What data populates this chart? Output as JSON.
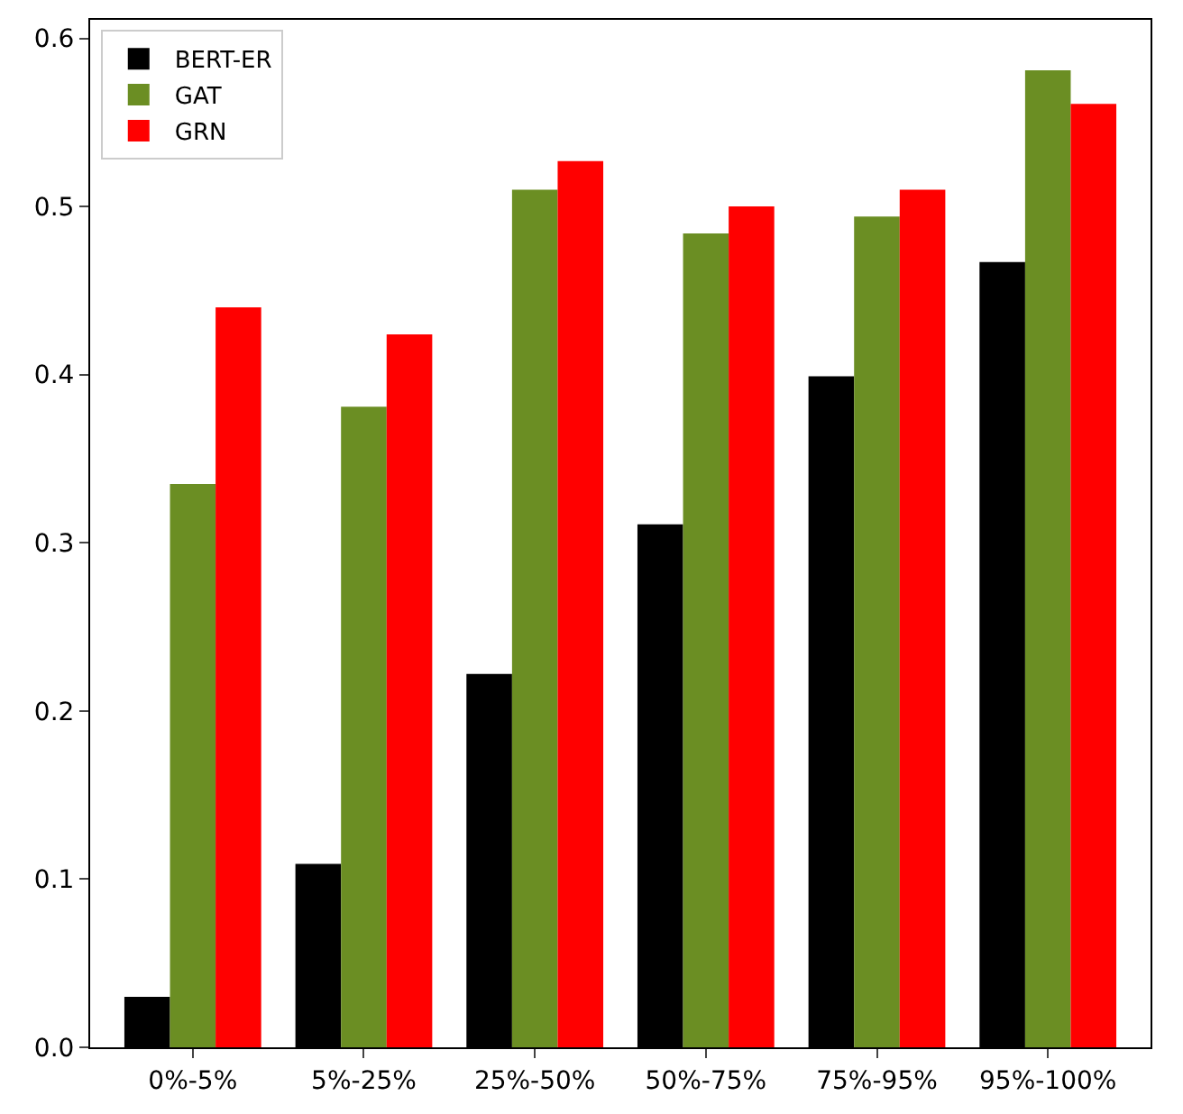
{
  "chart_data": {
    "type": "bar",
    "categories": [
      "0%-5%",
      "5%-25%",
      "25%-50%",
      "50%-75%",
      "75%-95%",
      "95%-100%"
    ],
    "series": [
      {
        "name": "BERT-ER",
        "color": "#000000",
        "values": [
          0.03,
          0.109,
          0.222,
          0.311,
          0.399,
          0.467
        ]
      },
      {
        "name": "GAT",
        "color": "#6b8e23",
        "values": [
          0.335,
          0.381,
          0.51,
          0.484,
          0.494,
          0.581
        ]
      },
      {
        "name": "GRN",
        "color": "#ff0000",
        "values": [
          0.44,
          0.424,
          0.527,
          0.5,
          0.51,
          0.561
        ]
      }
    ],
    "ylim": [
      0,
      0.611
    ],
    "yticks": [
      {
        "value": 0,
        "label": "0.0"
      },
      0.1,
      0.2,
      0.3,
      0.4,
      0.5,
      0.6
    ],
    "legend": "top left"
  }
}
